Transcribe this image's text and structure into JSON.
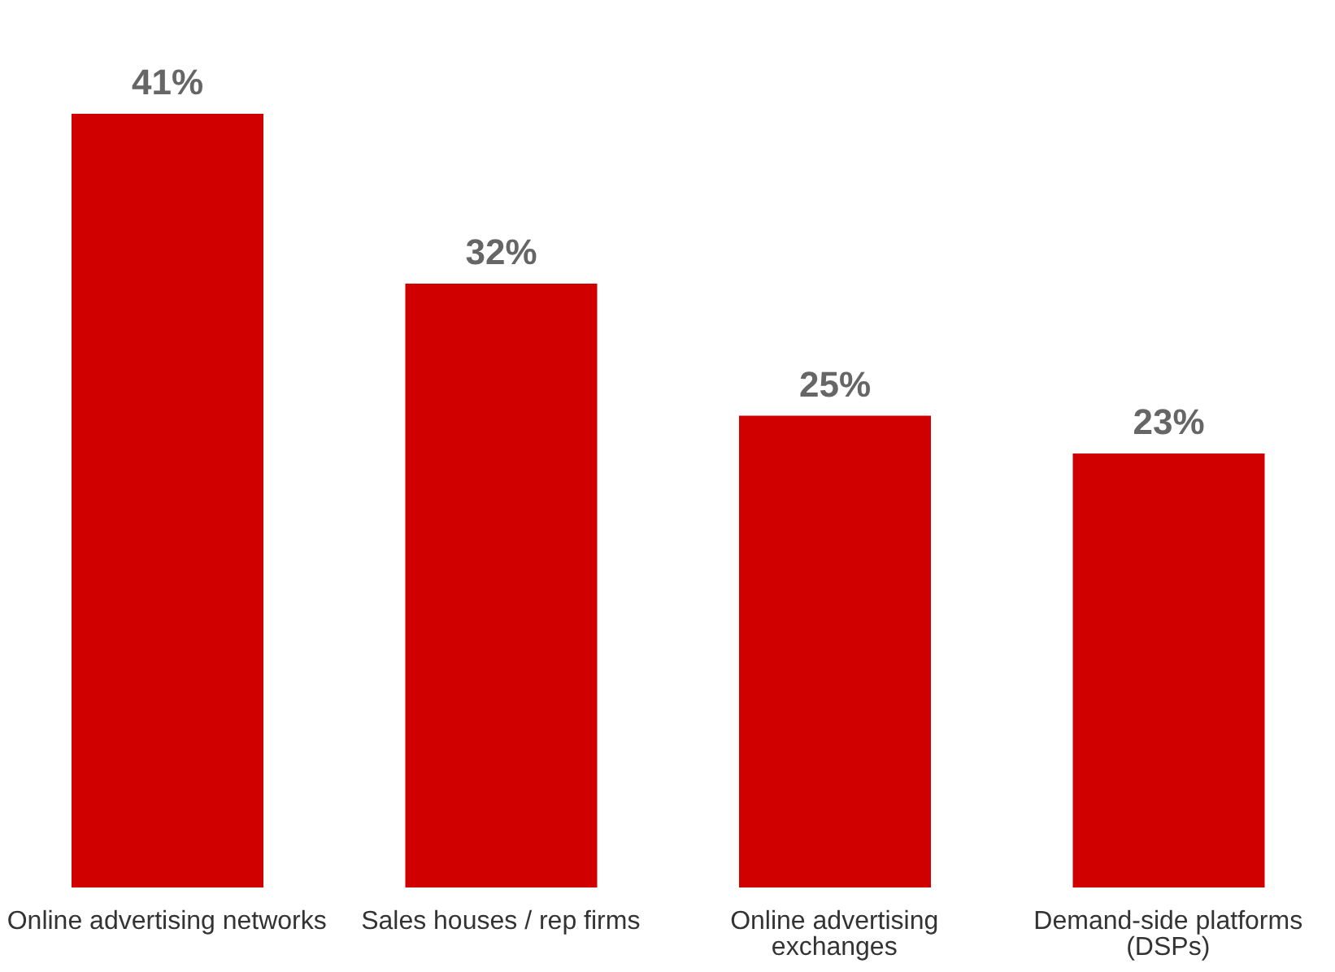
{
  "chart_data": {
    "type": "bar",
    "categories": [
      "Online advertising networks",
      "Sales houses / rep firms",
      "Online advertising exchanges",
      "Demand-side platforms (DSPs)"
    ],
    "values": [
      41,
      32,
      25,
      23
    ],
    "value_labels": [
      "41%",
      "32%",
      "25%",
      "23%"
    ],
    "color": "#d00000",
    "grid": false,
    "legend": false
  }
}
